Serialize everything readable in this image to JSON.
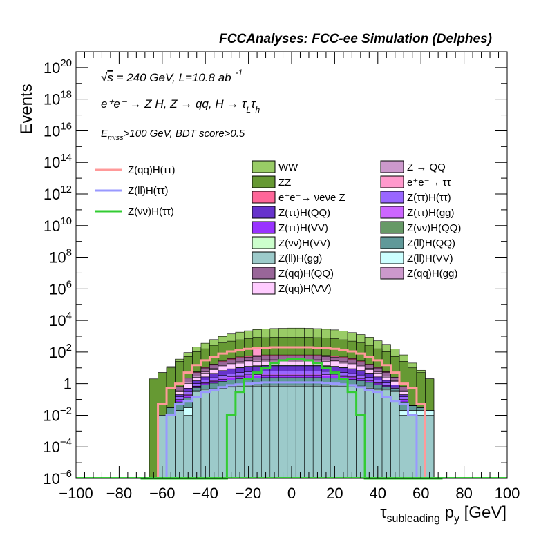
{
  "chart_data": {
    "type": "histogram",
    "title": "FCCAnalyses: FCC-ee Simulation (Delphes)",
    "xlabel": {
      "main": "τ",
      "sub": "subleading",
      "rest": " p",
      "sub2": "y",
      "unit": " [GeV]"
    },
    "ylabel": "Events",
    "xlim": [
      -100,
      100
    ],
    "ylim": [
      1e-06,
      1e+21
    ],
    "yscale": "log",
    "x_ticks": [
      -100,
      -80,
      -60,
      -40,
      -20,
      0,
      20,
      40,
      60,
      80,
      100
    ],
    "x_tick_labels": [
      "−100",
      "−80",
      "−60",
      "−40",
      "−20",
      "0",
      "20",
      "40",
      "60",
      "80",
      "100"
    ],
    "y_ticks": [
      {
        "value": 1e-06,
        "mant": "10",
        "exp": "−6"
      },
      {
        "value": 0.0001,
        "mant": "10",
        "exp": "−4"
      },
      {
        "value": 0.01,
        "mant": "10",
        "exp": "−2"
      },
      {
        "value": 1,
        "mant": "1",
        "exp": ""
      },
      {
        "value": 100.0,
        "mant": "10",
        "exp": "2"
      },
      {
        "value": 10000.0,
        "mant": "10",
        "exp": "4"
      },
      {
        "value": 1000000.0,
        "mant": "10",
        "exp": "6"
      },
      {
        "value": 100000000.0,
        "mant": "10",
        "exp": "8"
      },
      {
        "value": 10000000000.0,
        "mant": "10",
        "exp": "10"
      },
      {
        "value": 1000000000000.0,
        "mant": "10",
        "exp": "12"
      },
      {
        "value": 100000000000000.0,
        "mant": "10",
        "exp": "14"
      },
      {
        "value": 1e+16,
        "mant": "10",
        "exp": "16"
      },
      {
        "value": 1e+18,
        "mant": "10",
        "exp": "18"
      },
      {
        "value": 1e+20,
        "mant": "10",
        "exp": "20"
      }
    ],
    "annotations": {
      "energy": {
        "sqrt": "√",
        "s": "s",
        "rest": " = 240 GeV, L=10.8 ab",
        "sup": "-1"
      },
      "process": "e⁺e⁻ → Z H, Z → qq, H → τ",
      "process_sub1": "L",
      "process_tau2": "τ",
      "process_sub2": "h",
      "cuts_E": "E",
      "cuts_sub": "miss",
      "cuts_rest": ">100 GeV, BDT score>0.5"
    },
    "bin_edges": [
      -70,
      -66,
      -62,
      -58,
      -54,
      -50,
      -46,
      -42,
      -38,
      -34,
      -30,
      -26,
      -22,
      -18,
      -14,
      -10,
      -6,
      -2,
      2,
      6,
      10,
      14,
      18,
      22,
      26,
      30,
      34,
      38,
      42,
      46,
      50,
      54,
      58,
      62,
      66,
      70
    ],
    "stack": [
      {
        "name": "Z(ll)H(gg)",
        "color": "#9ccaca",
        "values": [
          0,
          0,
          0.01,
          0.01,
          0.02,
          0.01,
          0.3,
          0.4,
          0.4,
          0.5,
          0.6,
          0.7,
          0.7,
          0.7,
          0.7,
          0.7,
          0.7,
          0.7,
          0.7,
          0.7,
          0.7,
          0.7,
          0.7,
          0.7,
          0.7,
          0.6,
          0.5,
          0.4,
          0.4,
          0.3,
          0.01,
          0.01,
          0.01,
          0.01,
          0
        ]
      },
      {
        "name": "Z(ll)H(VV)",
        "color": "#ccffff",
        "values": [
          0,
          0,
          0,
          0,
          0,
          0.02,
          0.05,
          0.06,
          0.07,
          0.08,
          0.08,
          0.09,
          0.09,
          0.09,
          0.09,
          0.09,
          0.09,
          0.09,
          0.09,
          0.09,
          0.09,
          0.09,
          0.09,
          0.09,
          0.09,
          0.08,
          0.08,
          0.07,
          0.06,
          0.05,
          0.01,
          0.01,
          0.01,
          0.01,
          0
        ]
      },
      {
        "name": "Z(νν)H(VV)",
        "color": "#ccffcc",
        "values": [
          0,
          0,
          0,
          0,
          0,
          0,
          0,
          0,
          0,
          0.02,
          0.03,
          0.03,
          0.03,
          0.03,
          0.03,
          0.03,
          0.03,
          0.03,
          0.03,
          0.03,
          0.03,
          0.03,
          0.03,
          0.03,
          0.03,
          0.03,
          0.02,
          0,
          0,
          0,
          0,
          0,
          0,
          0,
          0
        ]
      },
      {
        "name": "Z(ll)H(QQ)",
        "color": "#609999",
        "values": [
          0,
          0,
          0,
          0.02,
          0.05,
          0.1,
          0.2,
          0.4,
          0.6,
          0.8,
          1,
          1.2,
          1.4,
          1.5,
          1.6,
          1.6,
          1.6,
          1.6,
          1.6,
          1.6,
          1.6,
          1.5,
          1.4,
          1.2,
          1,
          0.8,
          0.6,
          0.4,
          0.2,
          0.1,
          0.05,
          0.02,
          0.01,
          0,
          0
        ]
      },
      {
        "name": "Z(ττ)H(VV)",
        "color": "#9933ff",
        "values": [
          0,
          0,
          0,
          0,
          0.02,
          0.05,
          0.1,
          0.2,
          0.3,
          0.5,
          0.6,
          0.7,
          0.8,
          0.8,
          0.9,
          0.9,
          0.9,
          0.9,
          0.9,
          0.9,
          0.9,
          0.8,
          0.8,
          0.7,
          0.6,
          0.5,
          0.3,
          0.2,
          0.1,
          0.05,
          0.02,
          0,
          0,
          0,
          0
        ]
      },
      {
        "name": "Z(ττ)H(gg)",
        "color": "#cc66ff",
        "values": [
          0,
          0,
          0,
          0,
          0.01,
          0.03,
          0.05,
          0.1,
          0.2,
          0.3,
          0.4,
          0.5,
          0.6,
          0.6,
          0.7,
          0.7,
          0.7,
          0.7,
          0.7,
          0.7,
          0.7,
          0.6,
          0.6,
          0.5,
          0.4,
          0.3,
          0.2,
          0.1,
          0.05,
          0.03,
          0.01,
          0,
          0,
          0,
          0
        ]
      },
      {
        "name": "Z(ττ)H(ττ)",
        "color": "#9966ff",
        "values": [
          0,
          0,
          0,
          0,
          0.05,
          0.1,
          0.3,
          0.5,
          0.8,
          1.2,
          1.5,
          1.8,
          2,
          2.2,
          2.3,
          2.3,
          2.3,
          2.3,
          2.3,
          2.3,
          2.3,
          2.2,
          2,
          1.8,
          1.5,
          1.2,
          0.8,
          0.5,
          0.3,
          0.1,
          0.05,
          0,
          0,
          0,
          0
        ]
      },
      {
        "name": "Z(ττ)H(QQ)",
        "color": "#6633cc",
        "values": [
          0,
          0,
          0,
          0,
          0.05,
          0.2,
          0.5,
          1,
          2,
          3,
          4,
          5,
          6,
          6.5,
          7,
          7,
          7,
          7,
          7,
          7,
          7,
          6.5,
          6,
          5,
          4,
          3,
          2,
          1,
          0.5,
          0.2,
          0.05,
          0,
          0,
          0,
          0
        ]
      },
      {
        "name": "Z(νν)H(QQ)",
        "color": "#669966",
        "values": [
          0,
          0,
          0,
          0,
          0,
          0,
          0,
          0,
          0.1,
          0.3,
          0.5,
          0.8,
          1,
          1.2,
          1.3,
          1.3,
          1.3,
          1.3,
          1.3,
          1.3,
          1.3,
          1.2,
          1,
          0.8,
          0.5,
          0.3,
          0.1,
          0,
          0,
          0,
          0,
          0,
          0,
          0,
          0
        ]
      },
      {
        "name": "Z(qq)H(VV)",
        "color": "#ffccff",
        "values": [
          0,
          0,
          0,
          0,
          0.1,
          0.5,
          1,
          2,
          3,
          5,
          7,
          9,
          10,
          11,
          12,
          12,
          12,
          12,
          12,
          12,
          12,
          11,
          10,
          9,
          7,
          5,
          3,
          2,
          1,
          0.5,
          0.1,
          0,
          0,
          0,
          0
        ]
      },
      {
        "name": "Z(qq)H(gg)",
        "color": "#cc99cc",
        "values": [
          0,
          0,
          0,
          0,
          0.05,
          0.2,
          0.5,
          1,
          1.5,
          2.5,
          3.5,
          4.5,
          5,
          5.5,
          6,
          6,
          6,
          6,
          6,
          6,
          6,
          5.5,
          5,
          4.5,
          3.5,
          2.5,
          1.5,
          1,
          0.5,
          0.2,
          0.05,
          0,
          0,
          0,
          0
        ]
      },
      {
        "name": "Z(qq)H(QQ)",
        "color": "#996699",
        "values": [
          0,
          0,
          0,
          0,
          0.3,
          1,
          2,
          4,
          6,
          10,
          14,
          18,
          20,
          22,
          24,
          24,
          24,
          24,
          24,
          24,
          24,
          22,
          20,
          18,
          14,
          10,
          6,
          4,
          2,
          1,
          0.3,
          0,
          0,
          0,
          0
        ]
      },
      {
        "name": "e⁺e⁻→ νeνe Z",
        "color": "#ff6699",
        "values": [
          0,
          0,
          0,
          0,
          0,
          0,
          0.5,
          1,
          2,
          3,
          5,
          6,
          7,
          8,
          8,
          8,
          8,
          8,
          8,
          8,
          8,
          8,
          7,
          6,
          5,
          3,
          2,
          1,
          0.5,
          0,
          0,
          0,
          0,
          0,
          0
        ]
      },
      {
        "name": "e⁺e⁻→ ττ",
        "color": "#ff99cc",
        "values": [
          0,
          0,
          0,
          0,
          0,
          0,
          0,
          0,
          0,
          0,
          0,
          0,
          0,
          100,
          0,
          0,
          0,
          0,
          0,
          0,
          0,
          0,
          0,
          0,
          0,
          0,
          0,
          0,
          0,
          0,
          0,
          0,
          0,
          0,
          0
        ]
      },
      {
        "name": "Z → QQ",
        "color": "#cc99cc",
        "values": [
          0,
          0,
          0,
          0,
          0,
          0,
          0,
          0,
          0,
          0,
          0,
          0,
          0,
          0,
          0,
          0,
          0,
          0,
          0,
          0,
          0,
          0,
          0,
          0,
          0,
          0,
          0,
          0,
          0,
          0,
          0,
          0,
          0,
          0,
          0
        ]
      },
      {
        "name": "ZZ",
        "color": "#669933",
        "values": [
          0,
          2,
          5,
          10,
          25,
          50,
          100,
          150,
          250,
          350,
          450,
          550,
          650,
          700,
          750,
          800,
          800,
          800,
          800,
          800,
          750,
          700,
          650,
          550,
          450,
          350,
          250,
          150,
          100,
          50,
          25,
          10,
          5,
          2,
          0
        ]
      },
      {
        "name": "WW",
        "color": "#99cc66",
        "values": [
          0,
          0,
          0,
          2,
          10,
          40,
          100,
          200,
          350,
          600,
          900,
          1200,
          1500,
          1800,
          2000,
          2200,
          2300,
          2400,
          2400,
          2300,
          2200,
          2000,
          1800,
          1500,
          1200,
          900,
          600,
          350,
          200,
          100,
          40,
          10,
          2,
          0,
          0
        ]
      }
    ],
    "lines": [
      {
        "name": "Z(qq)H(ττ)",
        "color": "#ff9999",
        "values": [
          0,
          1e-06,
          0.05,
          0.5,
          1,
          5,
          15,
          30,
          50,
          80,
          110,
          140,
          160,
          180,
          190,
          200,
          200,
          200,
          200,
          200,
          190,
          180,
          160,
          140,
          110,
          80,
          50,
          30,
          15,
          5,
          1,
          0.5,
          0.05,
          1e-06,
          0
        ]
      },
      {
        "name": "Z(ll)H(ττ)",
        "color": "#9999ff",
        "values": [
          0,
          0,
          0,
          0.01,
          0.05,
          0.08,
          0.15,
          0.3,
          0.4,
          0.6,
          0.8,
          0.9,
          1,
          1.1,
          1.2,
          1.2,
          1.2,
          1.2,
          1.2,
          1.2,
          1.2,
          1.1,
          1,
          0.9,
          0.8,
          0.6,
          0.4,
          0.3,
          0.15,
          0.08,
          0.05,
          0.01,
          0,
          0,
          0
        ]
      },
      {
        "name": "Z(νν)H(ττ)",
        "color": "#33cc33",
        "values": [
          0,
          0,
          0,
          0,
          0,
          0,
          0,
          0,
          0,
          0,
          0.01,
          0.3,
          2,
          5,
          10,
          20,
          30,
          35,
          35,
          30,
          20,
          10,
          5,
          2,
          0.3,
          0.01,
          0,
          0,
          0,
          0,
          0,
          0,
          0,
          0,
          0
        ]
      }
    ],
    "legend_lines": [
      "Z(qq)H(ττ)",
      "Z(ll)H(ττ)",
      "Z(νν)H(ττ)"
    ],
    "legend_col1": [
      {
        "label": "WW",
        "color": "#99cc66"
      },
      {
        "label": "ZZ",
        "color": "#669933"
      },
      {
        "label": "e⁺e⁻→ νeνe Z",
        "color": "#ff6699"
      },
      {
        "label": "Z(ττ)H(QQ)",
        "color": "#6633cc"
      },
      {
        "label": "Z(ττ)H(VV)",
        "color": "#9933ff"
      },
      {
        "label": "Z(νν)H(VV)",
        "color": "#ccffcc"
      },
      {
        "label": "Z(ll)H(gg)",
        "color": "#9ccaca"
      },
      {
        "label": "Z(qq)H(QQ)",
        "color": "#996699"
      },
      {
        "label": "Z(qq)H(VV)",
        "color": "#ffccff"
      }
    ],
    "legend_col2": [
      {
        "label": "Z → QQ",
        "color": "#cc99cc"
      },
      {
        "label": "e⁺e⁻→ ττ",
        "color": "#ff99cc"
      },
      {
        "label": "Z(ττ)H(ττ)",
        "color": "#9966ff"
      },
      {
        "label": "Z(ττ)H(gg)",
        "color": "#cc66ff"
      },
      {
        "label": "Z(νν)H(QQ)",
        "color": "#669966"
      },
      {
        "label": "Z(ll)H(QQ)",
        "color": "#609999"
      },
      {
        "label": "Z(ll)H(VV)",
        "color": "#ccffff"
      },
      {
        "label": "Z(qq)H(gg)",
        "color": "#cc99cc"
      }
    ]
  }
}
